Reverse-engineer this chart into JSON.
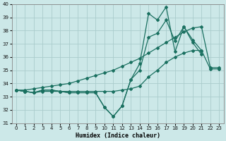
{
  "xlabel": "Humidex (Indice chaleur)",
  "bg_color": "#cce8e8",
  "grid_color": "#aacccc",
  "line_color": "#1a7060",
  "x_values": [
    0,
    1,
    2,
    3,
    4,
    5,
    6,
    7,
    8,
    9,
    10,
    11,
    12,
    13,
    14,
    15,
    16,
    17,
    18,
    19,
    20,
    21,
    22,
    23
  ],
  "series_max": [
    33.5,
    33.4,
    33.3,
    33.5,
    33.5,
    33.4,
    33.3,
    33.3,
    33.3,
    33.3,
    32.2,
    31.5,
    32.3,
    34.3,
    35.5,
    39.3,
    38.8,
    39.8,
    36.4,
    38.3,
    37.3,
    36.5,
    null,
    null
  ],
  "series_upper": [
    33.5,
    33.5,
    33.6,
    33.7,
    33.8,
    33.9,
    34.0,
    34.2,
    34.4,
    34.6,
    34.8,
    35.0,
    35.3,
    35.6,
    35.9,
    36.3,
    36.7,
    37.1,
    37.5,
    37.9,
    38.2,
    38.3,
    35.2,
    35.2
  ],
  "series_lower": [
    33.5,
    33.4,
    33.3,
    33.4,
    33.4,
    33.4,
    33.4,
    33.4,
    33.4,
    33.4,
    33.4,
    33.4,
    33.5,
    33.6,
    33.8,
    34.5,
    35.0,
    35.6,
    36.0,
    36.3,
    36.5,
    36.5,
    35.1,
    35.1
  ],
  "series_extra": [
    33.5,
    33.4,
    33.3,
    33.5,
    33.5,
    33.4,
    33.3,
    33.3,
    33.3,
    33.3,
    32.2,
    31.5,
    32.3,
    34.3,
    35.0,
    37.5,
    37.8,
    38.8,
    37.2,
    38.3,
    37.1,
    36.2,
    null,
    null
  ],
  "ylim": [
    31,
    40
  ],
  "yticks": [
    31,
    32,
    33,
    34,
    35,
    36,
    37,
    38,
    39,
    40
  ],
  "xticks": [
    0,
    1,
    2,
    3,
    4,
    5,
    6,
    7,
    8,
    9,
    10,
    11,
    12,
    13,
    14,
    15,
    16,
    17,
    18,
    19,
    20,
    21,
    22,
    23
  ],
  "marker": "D",
  "markersize": 2.0,
  "linewidth": 0.9
}
